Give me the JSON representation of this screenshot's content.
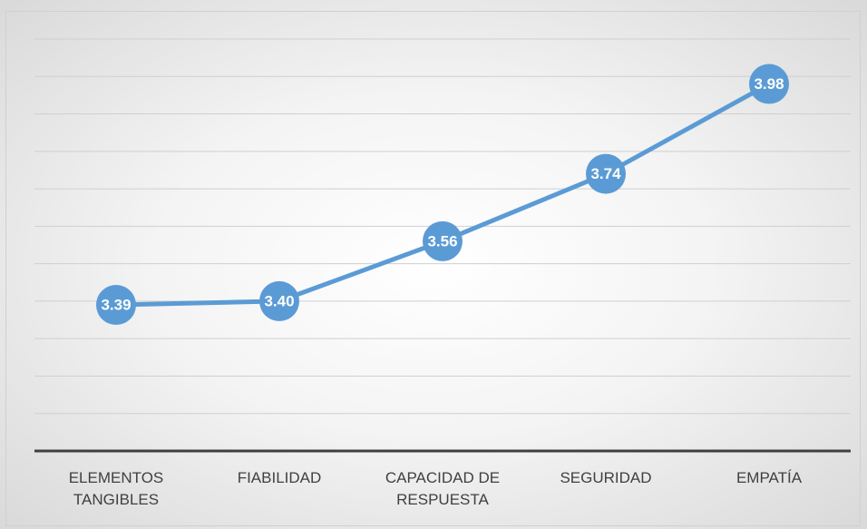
{
  "chart_data": {
    "type": "line",
    "categories": [
      "ELEMENTOS TANGIBLES",
      "FIABILIDAD",
      "CAPACIDAD DE RESPUESTA",
      "SEGURIDAD",
      "EMPATÍA"
    ],
    "series": [
      {
        "name": null,
        "color": "#5b9bd5",
        "values": [
          3.39,
          3.4,
          3.56,
          3.74,
          3.98
        ],
        "value_labels": [
          "3.39",
          "3.40",
          "3.56",
          "3.74",
          "3.98"
        ]
      }
    ],
    "ylim": [
      3.0,
      4.1
    ],
    "yticks": [
      3.1,
      3.2,
      3.3,
      3.4,
      3.5,
      3.6,
      3.7,
      3.8,
      3.9,
      4.0,
      4.1
    ],
    "grid": true
  }
}
